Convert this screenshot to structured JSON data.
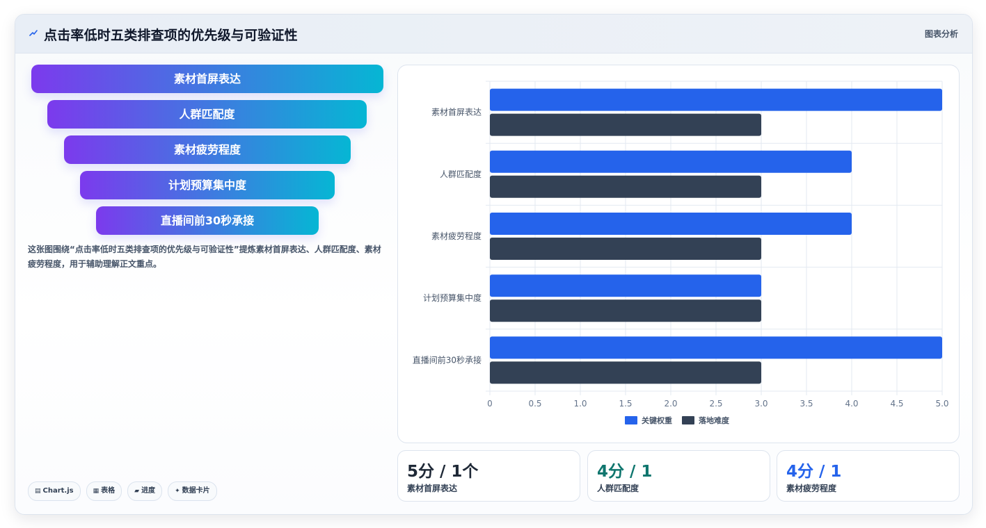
{
  "header": {
    "title": "点击率低时五类排查项的优先级与可验证性",
    "tag": "图表分析",
    "icon": "trend-icon"
  },
  "funnel": {
    "steps": [
      "素材首屏表达",
      "人群匹配度",
      "素材疲劳程度",
      "计划预算集中度",
      "直播间前30秒承接"
    ],
    "gradient": [
      "#7c3aed",
      "#06b6d4"
    ]
  },
  "description": "这张图围绕“点击率低时五类排查项的优先级与可验证性”提炼素材首屏表达、人群匹配度、素材疲劳程度，用于辅助理解正文重点。",
  "chips": [
    {
      "icon": "chart-icon",
      "glyph": "▤",
      "label": "Chart.js"
    },
    {
      "icon": "table-icon",
      "glyph": "▦",
      "label": "表格"
    },
    {
      "icon": "progress-icon",
      "glyph": "▰",
      "label": "进度"
    },
    {
      "icon": "sparkle-icon",
      "glyph": "✦",
      "label": "数据卡片"
    }
  ],
  "chart_data": {
    "type": "bar",
    "orientation": "horizontal",
    "categories": [
      "素材首屏表达",
      "人群匹配度",
      "素材疲劳程度",
      "计划预算集中度",
      "直播间前30秒承接"
    ],
    "series": [
      {
        "name": "关键权重",
        "values": [
          5,
          4,
          4,
          3,
          5
        ],
        "color": "#2563eb"
      },
      {
        "name": "落地难度",
        "values": [
          3,
          3,
          3,
          3,
          3
        ],
        "color": "#334155"
      }
    ],
    "xlim": [
      0,
      5
    ],
    "xticks": [
      "0",
      "0.5",
      "1.0",
      "1.5",
      "2.0",
      "2.5",
      "3.0",
      "3.5",
      "4.0",
      "4.5",
      "5.0"
    ],
    "grid": true,
    "legend": "bottom"
  },
  "stats": [
    {
      "value": "5分 / 1个",
      "label": "素材首屏表达",
      "color": "#1f2937"
    },
    {
      "value": "4分 / 1",
      "label": "人群匹配度",
      "color": "#0f766e"
    },
    {
      "value": "4分 / 1",
      "label": "素材疲劳程度",
      "color": "#2563eb"
    }
  ]
}
